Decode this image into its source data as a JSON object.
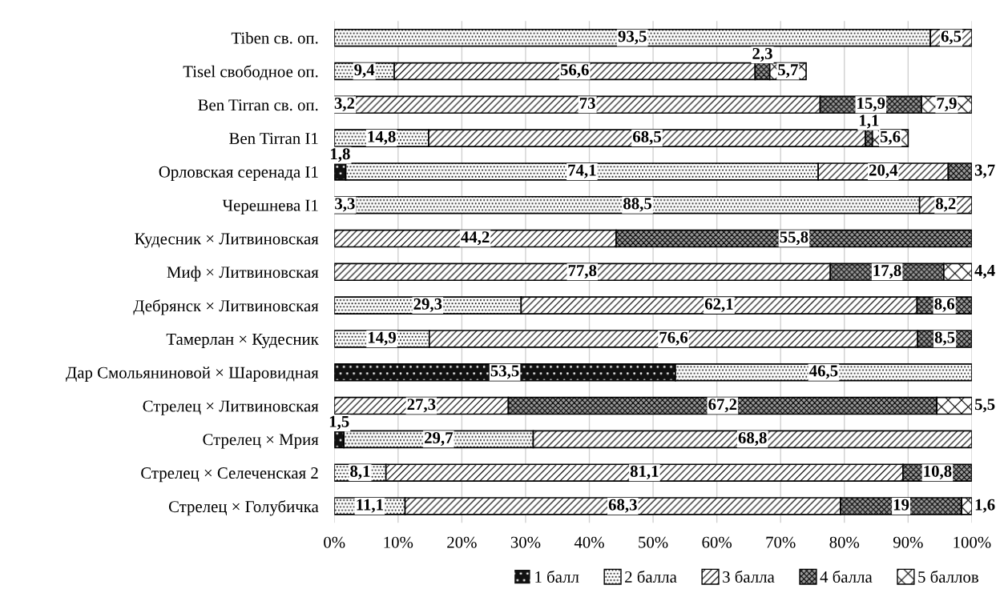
{
  "chart_data": {
    "type": "bar",
    "orientation": "horizontal",
    "stacked": true,
    "categories": [
      "Tiben св. оп.",
      "Tisel свободное оп.",
      "Ben Tirran св. оп.",
      "Ben Tirran I1",
      "Орловская серенада I1",
      "Черешнева I1",
      "Кудесник × Литвиновская",
      "Миф × Литвиновская",
      "Дебрянск × Литвиновская",
      "Тамерлан × Кудесник",
      "Дар Смольяниновой × Шаровидная",
      "Стрелец × Литвиновская",
      "Стрелец × Мрия",
      "Стрелец × Селеченская 2",
      "Стрелец × Голубичка"
    ],
    "series": [
      {
        "name": "1 балл",
        "color": "#111111",
        "values": [
          null,
          null,
          null,
          null,
          1.8,
          3.3,
          null,
          null,
          null,
          null,
          53.5,
          null,
          1.5,
          null,
          null
        ],
        "value_labels": [
          null,
          null,
          null,
          null,
          "1,8",
          "3,3",
          null,
          null,
          null,
          null,
          "53,5",
          null,
          "1,5",
          null,
          null
        ]
      },
      {
        "name": "2 балла",
        "color": "#ffffff",
        "values": [
          93.5,
          9.4,
          3.2,
          14.8,
          74.1,
          88.5,
          null,
          null,
          29.3,
          14.9,
          46.5,
          null,
          29.7,
          8.1,
          11.1
        ],
        "value_labels": [
          "93,5",
          "9,4",
          "3,2",
          "14,8",
          "74,1",
          "88,5",
          null,
          null,
          "29,3",
          "14,9",
          "46,5",
          null,
          "29,7",
          "8,1",
          "11,1"
        ]
      },
      {
        "name": "3 балла",
        "color": "#ffffff",
        "values": [
          6.5,
          56.6,
          73,
          68.5,
          20.4,
          8.2,
          44.2,
          77.8,
          62.1,
          76.6,
          null,
          27.3,
          68.8,
          81.1,
          68.3
        ],
        "value_labels": [
          "6,5",
          "56,6",
          "73",
          "68,5",
          "20,4",
          "8,2",
          "44,2",
          "77,8",
          "62,1",
          "76,6",
          null,
          "27,3",
          "68,8",
          "81,1",
          "68,3"
        ]
      },
      {
        "name": "4 балла",
        "color": "#9a9a9a",
        "values": [
          null,
          2.3,
          15.9,
          1.1,
          3.7,
          null,
          55.8,
          17.8,
          8.6,
          8.5,
          null,
          67.2,
          null,
          10.8,
          19
        ],
        "value_labels": [
          null,
          "2,3",
          "15,9",
          "1,1",
          "3,7",
          null,
          "55,8",
          "17,8",
          "8,6",
          "8,5",
          null,
          "67,2",
          null,
          "10,8",
          "19"
        ]
      },
      {
        "name": "5 баллов",
        "color": "#ffffff",
        "values": [
          null,
          5.7,
          7.9,
          5.6,
          null,
          null,
          null,
          4.4,
          null,
          null,
          null,
          5.5,
          null,
          null,
          1.6
        ],
        "value_labels": [
          null,
          "5,7",
          "7,9",
          "5,6",
          null,
          null,
          null,
          "4,4",
          null,
          null,
          null,
          "5,5",
          null,
          null,
          "1,6"
        ]
      }
    ],
    "xlim": [
      0,
      100
    ],
    "xticks": [
      {
        "value": 0,
        "label": "0%"
      },
      {
        "value": 10,
        "label": "10%"
      },
      {
        "value": 20,
        "label": "20%"
      },
      {
        "value": 30,
        "label": "30%"
      },
      {
        "value": 40,
        "label": "40%"
      },
      {
        "value": 50,
        "label": "50%"
      },
      {
        "value": 60,
        "label": "60%"
      },
      {
        "value": 70,
        "label": "70%"
      },
      {
        "value": 80,
        "label": "80%"
      },
      {
        "value": 90,
        "label": "90%"
      },
      {
        "value": 100,
        "label": "100%"
      }
    ],
    "grid": "x",
    "legend": "bottom right"
  }
}
